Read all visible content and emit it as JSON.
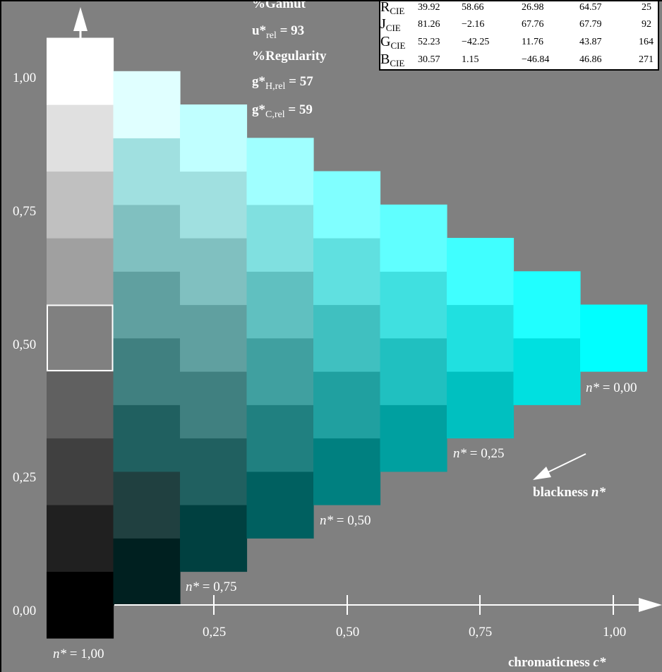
{
  "y_axis_ticks": [
    "0,00",
    "0,25",
    "0,50",
    "0,75",
    "1,00"
  ],
  "x_axis_ticks": [
    "0,25",
    "0,50",
    "0,75",
    "1,00"
  ],
  "x_axis_label": {
    "name": "chromaticness",
    "symbol": "c*"
  },
  "blackness_label": {
    "name": "blackness",
    "symbol": "n*"
  },
  "n_labels": [
    {
      "sym": "n*",
      "text": "= 1,00"
    },
    {
      "sym": "n*",
      "text": "= 0,75"
    },
    {
      "sym": "n*",
      "text": "= 0,50"
    },
    {
      "sym": "n*",
      "text": "= 0,25"
    },
    {
      "sym": "n*",
      "text": "= 0,00"
    }
  ],
  "metrics": {
    "gamut": "%Gamut",
    "u_rel": {
      "base": "u*",
      "sub": "rel",
      "value": " = 93"
    },
    "regularity": "%Regularity",
    "gH_rel": {
      "base": "g*",
      "sub": "H,rel",
      "value": " = 57"
    },
    "gC_rel": {
      "base": "g*",
      "sub": "C,rel",
      "value": " = 59"
    }
  },
  "cie_table": [
    {
      "name": "R",
      "sub": "CIE",
      "values": [
        "39.92",
        "58.66",
        "26.98",
        "64.57",
        "25"
      ]
    },
    {
      "name": "J",
      "sub": "CIE",
      "values": [
        "81.26",
        "−2.16",
        "67.76",
        "67.79",
        "92"
      ]
    },
    {
      "name": "G",
      "sub": "CIE",
      "values": [
        "52.23",
        "−42.25",
        "11.76",
        "43.87",
        "164"
      ]
    },
    {
      "name": "B",
      "sub": "CIE",
      "values": [
        "30.57",
        "1.15",
        "−46.84",
        "46.86",
        "271"
      ]
    }
  ],
  "colors": {
    "background": "#808080",
    "axis": "#ffffff",
    "hue_end": "#00ffff"
  },
  "chart_data": {
    "type": "heatmap",
    "title": "",
    "xlabel": "chromaticness c*",
    "ylabel": "",
    "xlim": [
      0,
      1
    ],
    "ylim": [
      0,
      1
    ],
    "steps": 8,
    "columns": [
      {
        "c": 0,
        "colors": [
          "#000000",
          "#202020",
          "#404040",
          "#606060",
          "#808080",
          "#a0a0a0",
          "#c0c0c0",
          "#e0e0e0",
          "#ffffff"
        ]
      },
      {
        "c": 1,
        "colors": [
          "#002020",
          "#204040",
          "#206060",
          "#408080",
          "#60a0a0",
          "#80c0c0",
          "#a0e0e0",
          "#e0ffff"
        ]
      },
      {
        "c": 2,
        "colors": [
          "#004040",
          "#206060",
          "#408080",
          "#60a0a0",
          "#80c0c0",
          "#a0e0e0",
          "#c0ffff"
        ]
      },
      {
        "c": 3,
        "colors": [
          "#006060",
          "#208080",
          "#40a0a0",
          "#60c0c0",
          "#80e0e0",
          "#a0ffff"
        ]
      },
      {
        "c": 4,
        "colors": [
          "#008080",
          "#20a0a0",
          "#40c0c0",
          "#60e0e0",
          "#80ffff"
        ]
      },
      {
        "c": 5,
        "colors": [
          "#00a0a0",
          "#20c0c0",
          "#40e0e0",
          "#60ffff"
        ]
      },
      {
        "c": 6,
        "colors": [
          "#00c0c0",
          "#20e0e0",
          "#40ffff"
        ]
      },
      {
        "c": 7,
        "colors": [
          "#00e0e0",
          "#20ffff"
        ]
      },
      {
        "c": 8,
        "colors": [
          "#00ffff"
        ]
      }
    ],
    "highlighted_cell": {
      "c": 0,
      "level": 4
    }
  }
}
